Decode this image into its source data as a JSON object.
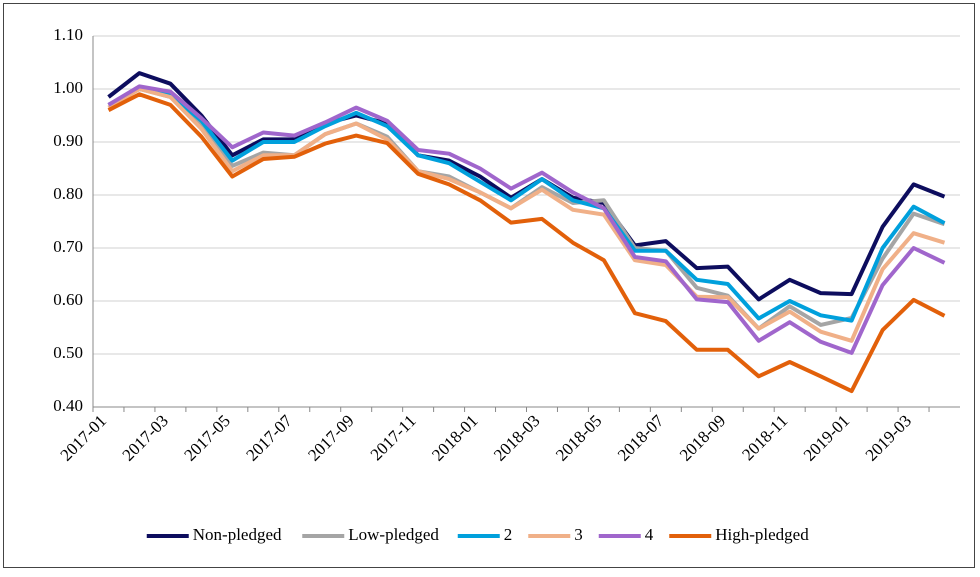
{
  "chart_data": {
    "type": "line",
    "categories": [
      "2017-01",
      null,
      "2017-03",
      null,
      "2017-05",
      null,
      "2017-07",
      null,
      "2017-09",
      null,
      "2017-11",
      null,
      "2018-01",
      null,
      "2018-03",
      null,
      "2018-05",
      null,
      "2018-07",
      null,
      "2018-09",
      null,
      "2018-11",
      null,
      "2019-01",
      null,
      "2019-03",
      null
    ],
    "series": [
      {
        "name": "Non-pledged",
        "color": "#0d0d5e",
        "values": [
          0.985,
          1.03,
          1.01,
          0.95,
          0.875,
          0.905,
          0.905,
          0.935,
          0.95,
          0.935,
          0.875,
          0.865,
          0.835,
          0.795,
          0.83,
          0.795,
          0.785,
          0.705,
          0.713,
          0.662,
          0.665,
          0.603,
          0.64,
          0.615,
          0.613,
          0.74,
          0.82,
          0.797
        ]
      },
      {
        "name": "Low-pledged",
        "color": "#a5a5a5",
        "values": [
          0.97,
          1.0,
          0.985,
          0.935,
          0.855,
          0.88,
          0.875,
          0.915,
          0.935,
          0.91,
          0.845,
          0.835,
          0.805,
          0.775,
          0.815,
          0.785,
          0.79,
          0.7,
          0.695,
          0.625,
          0.61,
          0.548,
          0.59,
          0.555,
          0.568,
          0.68,
          0.765,
          0.745
        ]
      },
      {
        "name": "2",
        "color": "#00a0dc",
        "values": [
          0.97,
          1.0,
          0.99,
          0.94,
          0.865,
          0.9,
          0.9,
          0.93,
          0.955,
          0.93,
          0.875,
          0.86,
          0.825,
          0.79,
          0.83,
          0.79,
          0.775,
          0.695,
          0.695,
          0.64,
          0.632,
          0.567,
          0.6,
          0.573,
          0.563,
          0.7,
          0.778,
          0.747
        ]
      },
      {
        "name": "3",
        "color": "#f0b088",
        "values": [
          0.965,
          1.0,
          0.985,
          0.925,
          0.845,
          0.875,
          0.875,
          0.915,
          0.935,
          0.905,
          0.845,
          0.83,
          0.805,
          0.775,
          0.81,
          0.772,
          0.763,
          0.677,
          0.668,
          0.608,
          0.607,
          0.548,
          0.58,
          0.542,
          0.525,
          0.66,
          0.728,
          0.71
        ]
      },
      {
        "name": "4",
        "color": "#a066cc",
        "values": [
          0.97,
          1.005,
          0.995,
          0.945,
          0.89,
          0.918,
          0.912,
          0.937,
          0.965,
          0.94,
          0.885,
          0.878,
          0.85,
          0.812,
          0.842,
          0.805,
          0.775,
          0.683,
          0.675,
          0.603,
          0.598,
          0.525,
          0.56,
          0.523,
          0.502,
          0.63,
          0.7,
          0.672
        ]
      },
      {
        "name": "High-pledged",
        "color": "#e2600a",
        "values": [
          0.96,
          0.99,
          0.97,
          0.91,
          0.835,
          0.868,
          0.872,
          0.897,
          0.912,
          0.898,
          0.84,
          0.82,
          0.79,
          0.748,
          0.755,
          0.71,
          0.677,
          0.577,
          0.562,
          0.508,
          0.508,
          0.458,
          0.485,
          0.458,
          0.43,
          0.545,
          0.602,
          0.572
        ]
      }
    ],
    "ylim": [
      0.4,
      1.1
    ],
    "yticks": [
      {
        "value": 0.4,
        "label": "0.40"
      },
      {
        "value": 0.5,
        "label": "0.50"
      },
      {
        "value": 0.6,
        "label": "0.60"
      },
      {
        "value": 0.7,
        "label": "0.70"
      },
      {
        "value": 0.8,
        "label": "0.80"
      },
      {
        "value": 0.9,
        "label": "0.90"
      },
      {
        "value": 1.0,
        "label": "1.00"
      },
      {
        "value": 1.1,
        "label": "1.10"
      }
    ],
    "grid": true,
    "legend": "bottom"
  }
}
